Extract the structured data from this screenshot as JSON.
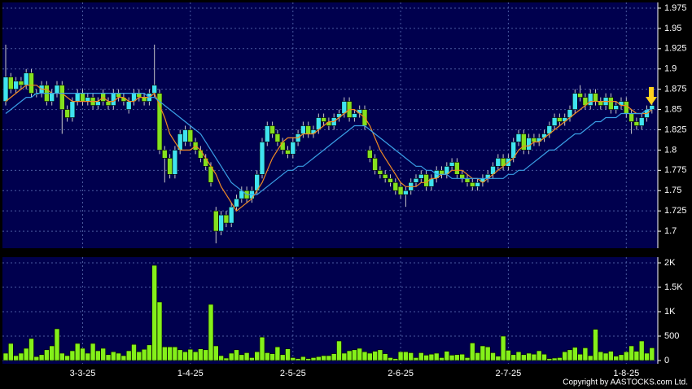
{
  "chart_data": [
    {
      "type": "candlestick",
      "up_color": "#3fe3f0",
      "down_color": "#84e01e",
      "grid": true,
      "ylim": [
        1.679,
        1.982
      ],
      "yticks": [
        1.7,
        1.725,
        1.75,
        1.775,
        1.8,
        1.825,
        1.85,
        1.875,
        1.9,
        1.925,
        1.95,
        1.975
      ],
      "open": [
        1.86,
        1.89,
        1.875,
        1.885,
        1.88,
        1.895,
        1.87,
        1.87,
        1.88,
        1.86,
        1.87,
        1.88,
        1.85,
        1.84,
        1.86,
        1.87,
        1.86,
        1.865,
        1.855,
        1.87,
        1.86,
        1.855,
        1.87,
        1.865,
        1.85,
        1.86,
        1.87,
        1.865,
        1.86,
        1.87,
        1.87,
        1.8,
        1.79,
        1.77,
        1.8,
        1.81,
        1.825,
        1.81,
        1.8,
        1.79,
        1.78,
        1.725,
        1.7,
        1.72,
        1.71,
        1.73,
        1.74,
        1.75,
        1.74,
        1.75,
        1.77,
        1.81,
        1.83,
        1.82,
        1.81,
        1.8,
        1.795,
        1.81,
        1.82,
        1.83,
        1.82,
        1.825,
        1.84,
        1.835,
        1.83,
        1.84,
        1.845,
        1.86,
        1.84,
        1.845,
        1.85,
        1.8,
        1.79,
        1.775,
        1.77,
        1.765,
        1.76,
        1.755,
        1.745,
        1.75,
        1.76,
        1.765,
        1.77,
        1.755,
        1.765,
        1.775,
        1.77,
        1.78,
        1.785,
        1.77,
        1.765,
        1.76,
        1.755,
        1.76,
        1.765,
        1.77,
        1.78,
        1.79,
        1.78,
        1.79,
        1.81,
        1.82,
        1.8,
        1.815,
        1.81,
        1.815,
        1.82,
        1.83,
        1.84,
        1.835,
        1.84,
        1.85,
        1.87,
        1.865,
        1.855,
        1.87,
        1.86,
        1.855,
        1.865,
        1.85,
        1.855,
        1.86,
        1.845,
        1.835,
        1.83,
        1.84,
        1.85
      ],
      "high": [
        1.93,
        1.895,
        1.89,
        1.89,
        1.9,
        1.9,
        1.875,
        1.885,
        1.885,
        1.875,
        1.885,
        1.885,
        1.855,
        1.865,
        1.875,
        1.875,
        1.87,
        1.87,
        1.865,
        1.875,
        1.865,
        1.875,
        1.875,
        1.87,
        1.865,
        1.875,
        1.875,
        1.87,
        1.875,
        1.93,
        1.875,
        1.805,
        1.795,
        1.805,
        1.825,
        1.83,
        1.83,
        1.815,
        1.805,
        1.795,
        1.785,
        1.73,
        1.725,
        1.725,
        1.735,
        1.745,
        1.755,
        1.755,
        1.755,
        1.775,
        1.815,
        1.835,
        1.835,
        1.825,
        1.815,
        1.805,
        1.815,
        1.825,
        1.835,
        1.835,
        1.83,
        1.845,
        1.845,
        1.84,
        1.845,
        1.85,
        1.865,
        1.865,
        1.85,
        1.855,
        1.855,
        1.805,
        1.795,
        1.78,
        1.775,
        1.77,
        1.765,
        1.76,
        1.755,
        1.765,
        1.77,
        1.775,
        1.775,
        1.77,
        1.78,
        1.78,
        1.785,
        1.79,
        1.79,
        1.775,
        1.77,
        1.765,
        1.765,
        1.77,
        1.775,
        1.785,
        1.795,
        1.795,
        1.795,
        1.815,
        1.825,
        1.825,
        1.82,
        1.82,
        1.82,
        1.825,
        1.835,
        1.845,
        1.845,
        1.845,
        1.855,
        1.875,
        1.88,
        1.87,
        1.875,
        1.875,
        1.865,
        1.87,
        1.87,
        1.86,
        1.865,
        1.865,
        1.85,
        1.84,
        1.845,
        1.855,
        1.86
      ],
      "low": [
        1.855,
        1.87,
        1.87,
        1.875,
        1.875,
        1.865,
        1.865,
        1.865,
        1.855,
        1.855,
        1.865,
        1.82,
        1.835,
        1.835,
        1.855,
        1.855,
        1.855,
        1.85,
        1.85,
        1.855,
        1.85,
        1.85,
        1.86,
        1.855,
        1.845,
        1.855,
        1.86,
        1.855,
        1.855,
        1.865,
        1.795,
        1.76,
        1.765,
        1.765,
        1.795,
        1.805,
        1.805,
        1.795,
        1.785,
        1.775,
        1.755,
        1.685,
        1.695,
        1.705,
        1.705,
        1.725,
        1.735,
        1.735,
        1.735,
        1.745,
        1.765,
        1.805,
        1.815,
        1.805,
        1.795,
        1.79,
        1.79,
        1.805,
        1.815,
        1.815,
        1.815,
        1.82,
        1.83,
        1.825,
        1.825,
        1.835,
        1.84,
        1.835,
        1.835,
        1.84,
        1.825,
        1.785,
        1.77,
        1.765,
        1.76,
        1.755,
        1.745,
        1.74,
        1.73,
        1.745,
        1.755,
        1.76,
        1.75,
        1.75,
        1.76,
        1.765,
        1.765,
        1.775,
        1.765,
        1.76,
        1.755,
        1.75,
        1.75,
        1.755,
        1.76,
        1.765,
        1.775,
        1.775,
        1.775,
        1.785,
        1.805,
        1.795,
        1.795,
        1.805,
        1.805,
        1.81,
        1.815,
        1.825,
        1.83,
        1.83,
        1.835,
        1.845,
        1.86,
        1.85,
        1.85,
        1.855,
        1.85,
        1.85,
        1.845,
        1.845,
        1.85,
        1.84,
        1.82,
        1.825,
        1.825,
        1.835,
        1.845
      ],
      "close": [
        1.89,
        1.875,
        1.885,
        1.88,
        1.895,
        1.87,
        1.87,
        1.88,
        1.86,
        1.87,
        1.88,
        1.85,
        1.84,
        1.86,
        1.87,
        1.86,
        1.865,
        1.855,
        1.86,
        1.86,
        1.855,
        1.87,
        1.865,
        1.86,
        1.86,
        1.87,
        1.865,
        1.86,
        1.87,
        1.88,
        1.8,
        1.79,
        1.77,
        1.8,
        1.82,
        1.825,
        1.81,
        1.8,
        1.79,
        1.78,
        1.76,
        1.7,
        1.72,
        1.71,
        1.73,
        1.74,
        1.75,
        1.74,
        1.75,
        1.77,
        1.81,
        1.83,
        1.82,
        1.81,
        1.8,
        1.795,
        1.81,
        1.82,
        1.83,
        1.82,
        1.825,
        1.84,
        1.835,
        1.83,
        1.84,
        1.845,
        1.86,
        1.84,
        1.845,
        1.85,
        1.83,
        1.79,
        1.775,
        1.77,
        1.765,
        1.76,
        1.75,
        1.745,
        1.75,
        1.76,
        1.765,
        1.77,
        1.755,
        1.765,
        1.775,
        1.77,
        1.78,
        1.785,
        1.77,
        1.765,
        1.76,
        1.755,
        1.76,
        1.765,
        1.77,
        1.78,
        1.79,
        1.78,
        1.79,
        1.81,
        1.82,
        1.8,
        1.815,
        1.81,
        1.815,
        1.82,
        1.83,
        1.84,
        1.835,
        1.84,
        1.85,
        1.87,
        1.865,
        1.855,
        1.87,
        1.86,
        1.855,
        1.865,
        1.85,
        1.855,
        1.86,
        1.845,
        1.835,
        1.83,
        1.84,
        1.85,
        1.855
      ],
      "series": [
        {
          "color": "#f08a24",
          "values": [
            1.86,
            1.865,
            1.87,
            1.875,
            1.88,
            1.88,
            1.88,
            1.875,
            1.875,
            1.87,
            1.87,
            1.87,
            1.865,
            1.86,
            1.86,
            1.86,
            1.86,
            1.86,
            1.86,
            1.865,
            1.86,
            1.86,
            1.865,
            1.865,
            1.86,
            1.86,
            1.865,
            1.865,
            1.865,
            1.87,
            1.855,
            1.84,
            1.82,
            1.81,
            1.8,
            1.8,
            1.8,
            1.805,
            1.8,
            1.79,
            1.78,
            1.77,
            1.755,
            1.745,
            1.735,
            1.725,
            1.73,
            1.735,
            1.74,
            1.75,
            1.76,
            1.775,
            1.79,
            1.8,
            1.81,
            1.815,
            1.815,
            1.815,
            1.82,
            1.82,
            1.82,
            1.825,
            1.83,
            1.835,
            1.835,
            1.84,
            1.845,
            1.85,
            1.85,
            1.845,
            1.84,
            1.83,
            1.815,
            1.8,
            1.79,
            1.78,
            1.77,
            1.76,
            1.755,
            1.755,
            1.755,
            1.76,
            1.76,
            1.765,
            1.765,
            1.77,
            1.77,
            1.775,
            1.775,
            1.775,
            1.77,
            1.765,
            1.765,
            1.76,
            1.765,
            1.77,
            1.775,
            1.78,
            1.785,
            1.79,
            1.8,
            1.805,
            1.805,
            1.81,
            1.81,
            1.815,
            1.82,
            1.825,
            1.83,
            1.835,
            1.84,
            1.845,
            1.85,
            1.855,
            1.86,
            1.86,
            1.86,
            1.86,
            1.86,
            1.86,
            1.855,
            1.855,
            1.85,
            1.845,
            1.845,
            1.845,
            1.85
          ]
        },
        {
          "color": "#3a9fe6",
          "values": [
            1.845,
            1.85,
            1.855,
            1.86,
            1.865,
            1.865,
            1.87,
            1.87,
            1.87,
            1.87,
            1.87,
            1.87,
            1.87,
            1.87,
            1.87,
            1.87,
            1.87,
            1.87,
            1.87,
            1.87,
            1.87,
            1.87,
            1.87,
            1.87,
            1.87,
            1.87,
            1.87,
            1.87,
            1.865,
            1.865,
            1.86,
            1.855,
            1.85,
            1.845,
            1.84,
            1.835,
            1.83,
            1.825,
            1.82,
            1.81,
            1.8,
            1.79,
            1.78,
            1.77,
            1.76,
            1.755,
            1.75,
            1.745,
            1.745,
            1.745,
            1.75,
            1.755,
            1.76,
            1.765,
            1.77,
            1.775,
            1.775,
            1.78,
            1.78,
            1.785,
            1.79,
            1.795,
            1.8,
            1.805,
            1.81,
            1.815,
            1.82,
            1.825,
            1.83,
            1.83,
            1.83,
            1.825,
            1.82,
            1.815,
            1.81,
            1.805,
            1.8,
            1.795,
            1.79,
            1.785,
            1.78,
            1.78,
            1.775,
            1.775,
            1.77,
            1.77,
            1.77,
            1.765,
            1.765,
            1.765,
            1.765,
            1.765,
            1.765,
            1.765,
            1.765,
            1.765,
            1.765,
            1.765,
            1.77,
            1.77,
            1.775,
            1.775,
            1.78,
            1.785,
            1.79,
            1.795,
            1.8,
            1.8,
            1.805,
            1.81,
            1.815,
            1.82,
            1.82,
            1.825,
            1.83,
            1.835,
            1.835,
            1.84,
            1.84,
            1.84,
            1.845,
            1.845,
            1.845,
            1.845,
            1.845,
            1.85,
            1.85
          ]
        }
      ]
    },
    {
      "type": "bar",
      "color": "#84f01a",
      "grid": true,
      "ylim": [
        -67,
        2117
      ],
      "yticks": [
        0,
        500,
        {
          "value": 1000,
          "label": "1K"
        },
        {
          "value": 1500,
          "label": "1.5K"
        },
        {
          "value": 2000,
          "label": "2K"
        }
      ],
      "categories": [
        null,
        null,
        null,
        null,
        null,
        null,
        null,
        null,
        null,
        null,
        null,
        null,
        null,
        null,
        null,
        "3-3-25",
        null,
        null,
        null,
        null,
        null,
        null,
        null,
        null,
        null,
        null,
        null,
        null,
        null,
        null,
        null,
        null,
        null,
        null,
        null,
        null,
        "1-4-25",
        null,
        null,
        null,
        null,
        null,
        null,
        null,
        null,
        null,
        null,
        null,
        null,
        null,
        null,
        null,
        null,
        null,
        null,
        null,
        "2-5-25",
        null,
        null,
        null,
        null,
        null,
        null,
        null,
        null,
        null,
        null,
        null,
        null,
        null,
        null,
        null,
        null,
        null,
        null,
        null,
        null,
        "2-6-25",
        null,
        null,
        null,
        null,
        null,
        null,
        null,
        null,
        null,
        null,
        null,
        null,
        null,
        null,
        null,
        null,
        null,
        null,
        null,
        null,
        "2-7-25",
        null,
        null,
        null,
        null,
        null,
        null,
        null,
        null,
        null,
        null,
        null,
        null,
        null,
        null,
        null,
        null,
        null,
        null,
        null,
        null,
        null,
        null,
        "1-8-25",
        null,
        null,
        null,
        null,
        null
      ],
      "values": [
        150,
        350,
        100,
        150,
        250,
        450,
        80,
        120,
        220,
        300,
        650,
        150,
        100,
        200,
        350,
        250,
        150,
        350,
        200,
        250,
        120,
        180,
        150,
        100,
        200,
        330,
        180,
        230,
        320,
        1950,
        1200,
        280,
        280,
        280,
        220,
        180,
        230,
        180,
        240,
        220,
        1150,
        300,
        100,
        50,
        150,
        220,
        120,
        160,
        60,
        180,
        480,
        160,
        140,
        280,
        120,
        240,
        60,
        40,
        80,
        40,
        60,
        80,
        100,
        100,
        140,
        400,
        150,
        200,
        220,
        250,
        180,
        150,
        190,
        220,
        140,
        60,
        40,
        180,
        180,
        160,
        60,
        160,
        110,
        130,
        150,
        60,
        190,
        110,
        120,
        130,
        60,
        360,
        160,
        300,
        280,
        160,
        90,
        500,
        210,
        120,
        180,
        120,
        150,
        130,
        200,
        130,
        40,
        50,
        60,
        180,
        220,
        270,
        130,
        260,
        100,
        640,
        180,
        150,
        190,
        90,
        120,
        180,
        300,
        190,
        400,
        150,
        260
      ]
    }
  ],
  "footer": "Copyright by AASTOCKS.com Ltd."
}
